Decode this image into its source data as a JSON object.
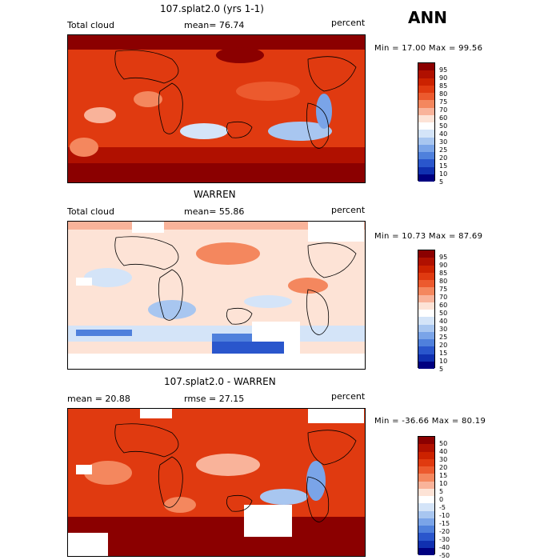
{
  "season": "ANN",
  "panels": [
    {
      "title": "107.splat2.0 (yrs 1-1)",
      "left": "Total cloud",
      "mean": "mean=   76.74",
      "units": "percent",
      "minmax": "Min =   17.00 Max =   99.56",
      "levels": [
        "95",
        "90",
        "85",
        "80",
        "75",
        "70",
        "60",
        "50",
        "40",
        "30",
        "25",
        "20",
        "15",
        "10",
        "5"
      ]
    },
    {
      "title": "WARREN",
      "left": "Total cloud",
      "mean": "mean=   55.86",
      "units": "percent",
      "minmax": "Min =   10.73 Max =   87.69",
      "levels": [
        "95",
        "90",
        "85",
        "80",
        "75",
        "70",
        "60",
        "50",
        "40",
        "30",
        "25",
        "20",
        "15",
        "10",
        "5"
      ]
    },
    {
      "title": "107.splat2.0 - WARREN",
      "left": "mean =   20.88",
      "mean": "rmse =   27.15",
      "units": "percent",
      "minmax": "Min = -36.66 Max =   80.19",
      "levels": [
        "50",
        "40",
        "30",
        "20",
        "15",
        "10",
        "5",
        "0",
        "-5",
        "-10",
        "-15",
        "-20",
        "-30",
        "-40",
        "-50"
      ]
    }
  ],
  "colors": {
    "scale": [
      "#8b0000",
      "#b01000",
      "#cc2200",
      "#e03a10",
      "#ec5a2e",
      "#f4875e",
      "#f9b39a",
      "#fde3d6",
      "#ffffff",
      "#d4e4f8",
      "#a8c6f0",
      "#7aa4e8",
      "#4f80dc",
      "#2a56cc",
      "#1030b0",
      "#000080"
    ]
  }
}
